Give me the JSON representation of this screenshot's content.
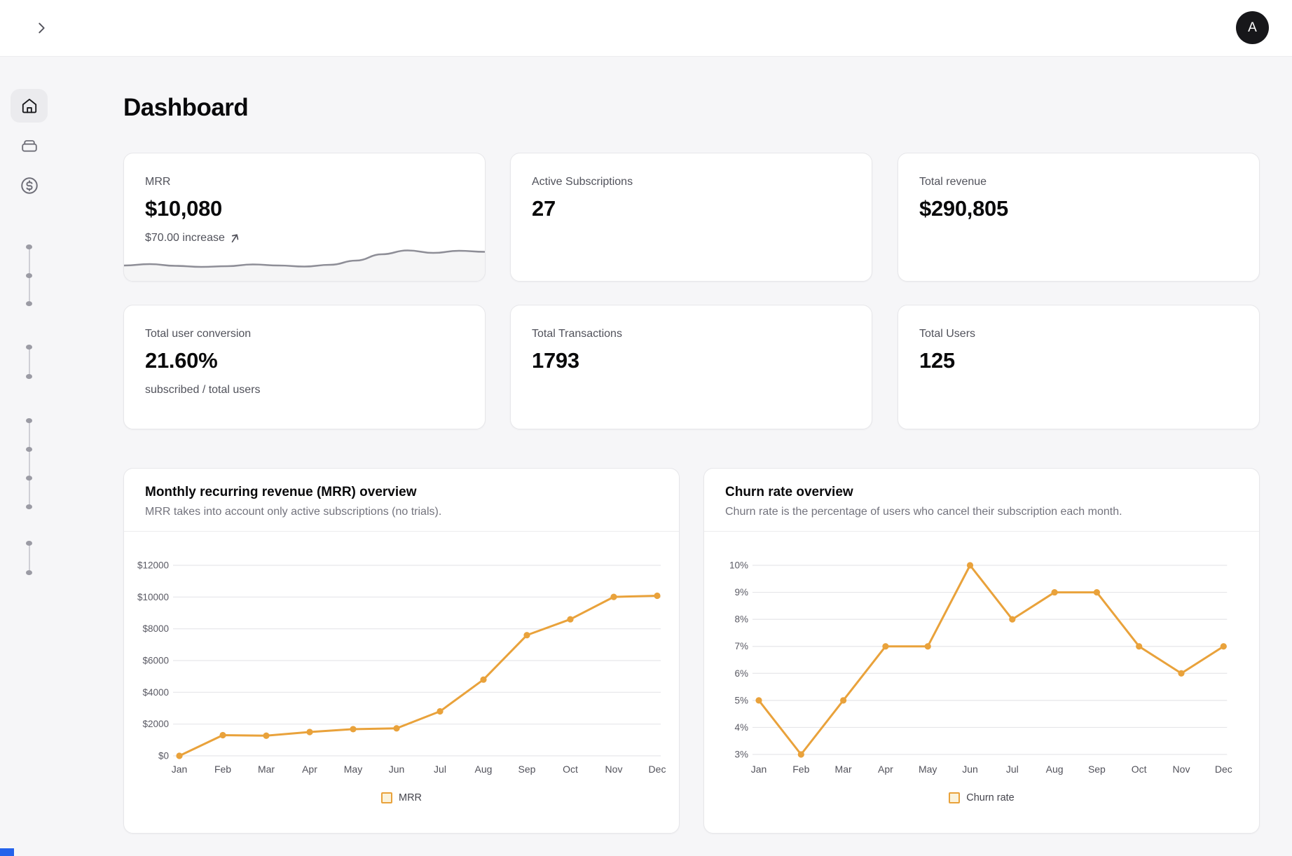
{
  "topbar": {
    "avatar_initial": "A"
  },
  "sidebar": {
    "items": [
      {
        "name": "home",
        "active": true
      },
      {
        "name": "wallet",
        "active": false
      },
      {
        "name": "revenue",
        "active": false
      }
    ],
    "dot_groups": [
      3,
      2,
      4,
      2
    ]
  },
  "page": {
    "title": "Dashboard"
  },
  "stats": [
    {
      "label": "MRR",
      "value": "$10,080",
      "sub": "$70.00 increase"
    },
    {
      "label": "Active Subscriptions",
      "value": "27"
    },
    {
      "label": "Total revenue",
      "value": "$290,805"
    },
    {
      "label": "Total user conversion",
      "value": "21.60%",
      "sub": "subscribed / total users"
    },
    {
      "label": "Total Transactions",
      "value": "1793"
    },
    {
      "label": "Total Users",
      "value": "125"
    }
  ],
  "colors": {
    "accent": "#E9A23B",
    "legend_fill": "#FBF3DC",
    "grid": "#e6e6e9",
    "tick_text": "#5a5a64",
    "sparkline": "#8E8E97",
    "corner_accent": "#2563eb"
  },
  "chart_data": [
    {
      "type": "line",
      "title": "Monthly recurring revenue (MRR) overview",
      "subtitle": "MRR takes into account only active subscriptions (no trials).",
      "categories": [
        "Jan",
        "Feb",
        "Mar",
        "Apr",
        "May",
        "Jun",
        "Jul",
        "Aug",
        "Sep",
        "Oct",
        "Nov",
        "Dec"
      ],
      "series": [
        {
          "name": "MRR",
          "values": [
            0,
            1300,
            1270,
            1500,
            1680,
            1730,
            2800,
            4800,
            7600,
            8600,
            10010,
            10080
          ]
        }
      ],
      "ylim": [
        0,
        12000
      ],
      "ytick_labels": [
        "$12000",
        "$10000",
        "$8000",
        "$6000",
        "$4000",
        "$2000",
        "$0"
      ],
      "grid": true,
      "legend": "MRR",
      "legend_position": "bottom",
      "line_color": "#E9A23B"
    },
    {
      "type": "line",
      "title": "Churn rate overview",
      "subtitle": "Churn rate is the percentage of users who cancel their subscription each month.",
      "categories": [
        "Jan",
        "Feb",
        "Mar",
        "Apr",
        "May",
        "Jun",
        "Jul",
        "Aug",
        "Sep",
        "Oct",
        "Nov",
        "Dec"
      ],
      "series": [
        {
          "name": "Churn rate",
          "values": [
            5,
            3,
            5,
            7,
            7,
            10,
            8,
            9,
            9,
            7,
            6,
            7
          ]
        }
      ],
      "ylim": [
        3,
        10
      ],
      "ytick_labels": [
        "10%",
        "9%",
        "8%",
        "7%",
        "6%",
        "5%",
        "4%",
        "3%"
      ],
      "grid": true,
      "legend": "Churn rate",
      "legend_position": "bottom",
      "line_color": "#E9A23B"
    },
    {
      "type": "area",
      "name": "mrr-card-sparkline",
      "values": [
        32,
        36,
        31,
        28,
        30,
        35,
        32,
        29,
        34,
        46,
        64,
        75,
        68,
        74,
        71
      ]
    }
  ]
}
